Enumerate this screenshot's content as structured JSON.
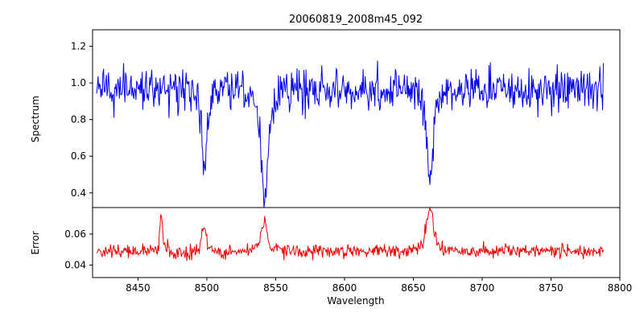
{
  "chart_data": {
    "type": "line",
    "title": "20060819_2008m45_092",
    "xlabel": "Wavelength",
    "legend": "none",
    "grid": false,
    "x_range": [
      8417,
      8800
    ],
    "x_ticks": [
      8450,
      8500,
      8550,
      8600,
      8650,
      8700,
      8750,
      8800
    ],
    "data_x_start": 8420,
    "data_x_end": 8788,
    "sample_step": 0.5,
    "panels": [
      {
        "name": "spectrum",
        "ylabel": "Spectrum",
        "color": "#0000ee",
        "ylim": [
          0.32,
          1.29
        ],
        "ytick_values": [
          0.4,
          0.6,
          0.8,
          1.0,
          1.2
        ],
        "ytick_labels": [
          "0.4",
          "0.6",
          "0.8",
          "1.0",
          "1.2"
        ],
        "baseline": 0.965,
        "noise_sigma": 0.055,
        "absorption_lines": [
          {
            "center": 8498,
            "depth": 0.435,
            "width": 1.6
          },
          {
            "center": 8542,
            "depth": 0.615,
            "width": 2.2
          },
          {
            "center": 8662,
            "depth": 0.475,
            "width": 2.0
          }
        ]
      },
      {
        "name": "error",
        "ylabel": "Error",
        "color": "#ee0000",
        "ylim": [
          0.032,
          0.077
        ],
        "ytick_values": [
          0.04,
          0.06
        ],
        "ytick_labels": [
          "0.04",
          "0.06"
        ],
        "baseline": 0.049,
        "noise_sigma": 0.0022,
        "emission_peaks": [
          {
            "center": 8467,
            "amp": 0.024,
            "width": 0.9
          },
          {
            "center": 8498,
            "amp": 0.016,
            "width": 1.6
          },
          {
            "center": 8542,
            "amp": 0.018,
            "width": 2.0
          },
          {
            "center": 8662,
            "amp": 0.028,
            "width": 2.2
          }
        ]
      }
    ]
  }
}
